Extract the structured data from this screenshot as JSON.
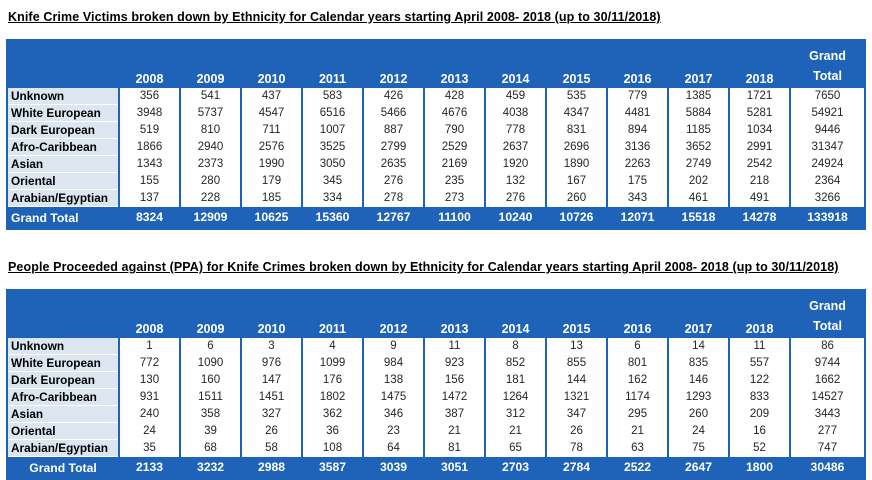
{
  "colors": {
    "header_blue": "#1F63B8",
    "label_bg": "#DCE6F1",
    "text_dark": "#262626",
    "header_text": "#FFFFFF"
  },
  "tables": [
    {
      "title": "Knife Crime Victims broken down by Ethnicity for Calendar years starting April 2008- 2018 (up to 30/11/2018)",
      "year_columns": [
        "2008",
        "2009",
        "2010",
        "2011",
        "2012",
        "2013",
        "2014",
        "2015",
        "2016",
        "2017",
        "2018"
      ],
      "grand_total_header": [
        "Grand",
        "Total"
      ],
      "rows": [
        {
          "label": "Unknown",
          "values": [
            356,
            541,
            437,
            583,
            426,
            428,
            459,
            535,
            779,
            1385,
            1721
          ],
          "total": 7650
        },
        {
          "label": "White European",
          "values": [
            3948,
            5737,
            4547,
            6516,
            5466,
            4676,
            4038,
            4347,
            4481,
            5884,
            5281
          ],
          "total": 54921
        },
        {
          "label": "Dark European",
          "values": [
            519,
            810,
            711,
            1007,
            887,
            790,
            778,
            831,
            894,
            1185,
            1034
          ],
          "total": 9446
        },
        {
          "label": "Afro-Caribbean",
          "values": [
            1866,
            2940,
            2576,
            3525,
            2799,
            2529,
            2637,
            2696,
            3136,
            3652,
            2991
          ],
          "total": 31347
        },
        {
          "label": "Asian",
          "values": [
            1343,
            2373,
            1990,
            3050,
            2635,
            2169,
            1920,
            1890,
            2263,
            2749,
            2542
          ],
          "total": 24924
        },
        {
          "label": "Oriental",
          "values": [
            155,
            280,
            179,
            345,
            276,
            235,
            132,
            167,
            175,
            202,
            218
          ],
          "total": 2364
        },
        {
          "label": "Arabian/Egyptian",
          "values": [
            137,
            228,
            185,
            334,
            278,
            273,
            276,
            260,
            343,
            461,
            491
          ],
          "total": 3266
        }
      ],
      "grand_total_row": {
        "label": "Grand Total",
        "label_align": "left",
        "values": [
          8324,
          12909,
          10625,
          15360,
          12767,
          11100,
          10240,
          10726,
          12071,
          15518,
          14278
        ],
        "total": 133918
      }
    },
    {
      "title": "People Proceeded against (PPA) for Knife Crimes broken down by Ethnicity for Calendar years starting April 2008- 2018 (up to 30/11/2018)",
      "year_columns": [
        "2008",
        "2009",
        "2010",
        "2011",
        "2012",
        "2013",
        "2014",
        "2015",
        "2016",
        "2017",
        "2018"
      ],
      "grand_total_header": [
        "Grand",
        "Total"
      ],
      "rows": [
        {
          "label": "Unknown",
          "values": [
            1,
            6,
            3,
            4,
            9,
            11,
            8,
            13,
            6,
            14,
            11
          ],
          "total": 86
        },
        {
          "label": "White European",
          "values": [
            772,
            1090,
            976,
            1099,
            984,
            923,
            852,
            855,
            801,
            835,
            557
          ],
          "total": 9744
        },
        {
          "label": "Dark European",
          "values": [
            130,
            160,
            147,
            176,
            138,
            156,
            181,
            144,
            162,
            146,
            122
          ],
          "total": 1662
        },
        {
          "label": "Afro-Caribbean",
          "values": [
            931,
            1511,
            1451,
            1802,
            1475,
            1472,
            1264,
            1321,
            1174,
            1293,
            833
          ],
          "total": 14527
        },
        {
          "label": "Asian",
          "values": [
            240,
            358,
            327,
            362,
            346,
            387,
            312,
            347,
            295,
            260,
            209
          ],
          "total": 3443
        },
        {
          "label": "Oriental",
          "values": [
            24,
            39,
            26,
            36,
            23,
            21,
            21,
            26,
            21,
            24,
            16
          ],
          "total": 277
        },
        {
          "label": "Arabian/Egyptian",
          "values": [
            35,
            68,
            58,
            108,
            64,
            81,
            65,
            78,
            63,
            75,
            52
          ],
          "total": 747
        }
      ],
      "grand_total_row": {
        "label": "Grand Total",
        "label_align": "center",
        "values": [
          2133,
          3232,
          2988,
          3587,
          3039,
          3051,
          2703,
          2784,
          2522,
          2647,
          1800
        ],
        "total": 30486
      }
    }
  ]
}
